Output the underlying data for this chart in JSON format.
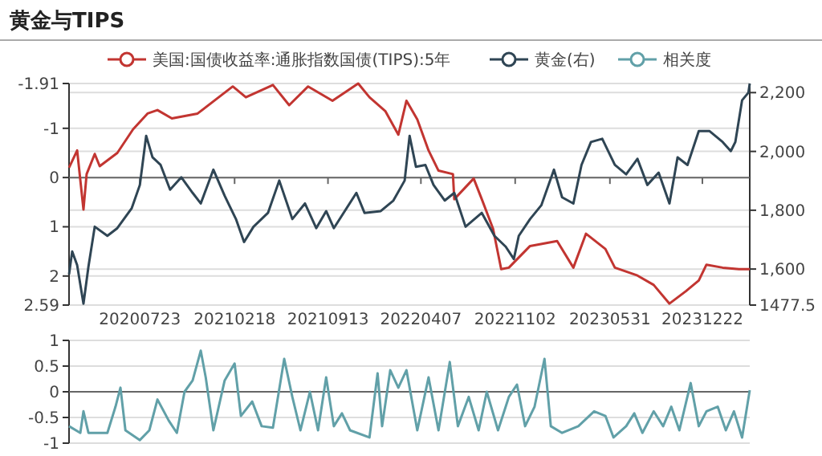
{
  "chart_data": [
    {
      "type": "line",
      "title": "黄金与TIPS",
      "xlim": [
        "2020-02-17",
        "2024-04-05"
      ],
      "xticks": [
        {
          "value": "2020-07-23",
          "label": "20200723"
        },
        {
          "value": "2021-02-18",
          "label": "20210218"
        },
        {
          "value": "2021-09-13",
          "label": "20210913"
        },
        {
          "value": "2022-04-07",
          "label": "20220407"
        },
        {
          "value": "2022-11-02",
          "label": "20221102"
        },
        {
          "value": "2023-05-31",
          "label": "20230531"
        },
        {
          "value": "2023-12-22",
          "label": "20231222"
        }
      ],
      "ylim": [
        2.59,
        -1.91
      ],
      "yticks": [
        -1.91,
        -1,
        0,
        1,
        2,
        2.59
      ],
      "y2lim": [
        1477.5,
        2231
      ],
      "y2ticks": [
        1477.5,
        {
          "value": 1600,
          "label": "1,600"
        },
        {
          "value": 1800,
          "label": "1,800"
        },
        {
          "value": 2000,
          "label": "2,000"
        },
        {
          "value": 2200,
          "label": "2,200"
        }
      ],
      "grid": "y",
      "legend": "top",
      "marker": "none",
      "series": [
        {
          "name": "美国:国债收益率:通胀指数国债(TIPS):5年",
          "color": "#c23531",
          "x": [
            "2020-02-17",
            "2020-03-06",
            "2020-03-20",
            "2020-03-27",
            "2020-04-14",
            "2020-04-25",
            "2020-06-03",
            "2020-07-08",
            "2020-08-09",
            "2020-08-31",
            "2020-10-02",
            "2020-11-28",
            "2021-02-14",
            "2021-03-15",
            "2021-05-14",
            "2021-06-19",
            "2021-07-31",
            "2021-09-23",
            "2021-11-19",
            "2021-12-14",
            "2022-01-18",
            "2022-02-16",
            "2022-03-06",
            "2022-03-30",
            "2022-04-24",
            "2022-05-16",
            "2022-06-17",
            "2022-06-20",
            "2022-08-02",
            "2022-08-20",
            "2022-09-14",
            "2022-10-02",
            "2022-10-19",
            "2022-12-05",
            "2023-02-03",
            "2023-03-11",
            "2023-04-08",
            "2023-05-21",
            "2023-06-11",
            "2023-07-31",
            "2023-09-05",
            "2023-10-10",
            "2023-11-15",
            "2023-12-14",
            "2023-12-31",
            "2024-02-05",
            "2024-03-12",
            "2024-04-05"
          ],
          "values": [
            -0.2,
            -0.55,
            0.65,
            -0.07,
            -0.48,
            -0.23,
            -0.5,
            -0.98,
            -1.3,
            -1.37,
            -1.2,
            -1.3,
            -1.85,
            -1.63,
            -1.88,
            -1.47,
            -1.85,
            -1.56,
            -1.91,
            -1.63,
            -1.35,
            -0.87,
            -1.56,
            -1.18,
            -0.55,
            -0.14,
            -0.07,
            0.44,
            0.02,
            0.44,
            1.04,
            1.86,
            1.83,
            1.39,
            1.29,
            1.83,
            1.14,
            1.45,
            1.83,
            1.99,
            2.18,
            2.56,
            2.31,
            2.09,
            1.77,
            1.83,
            1.86,
            1.86
          ]
        },
        {
          "name": "黄金(右)",
          "color": "#2f4554",
          "axis": "y2",
          "x": [
            "2020-02-17",
            "2020-02-24",
            "2020-03-06",
            "2020-03-20",
            "2020-03-31",
            "2020-04-14",
            "2020-05-12",
            "2020-06-03",
            "2020-07-05",
            "2020-07-23",
            "2020-08-06",
            "2020-08-20",
            "2020-09-07",
            "2020-09-28",
            "2020-10-23",
            "2020-11-17",
            "2020-12-05",
            "2021-01-02",
            "2021-01-27",
            "2021-02-21",
            "2021-03-11",
            "2021-04-01",
            "2021-05-03",
            "2021-05-28",
            "2021-06-26",
            "2021-07-24",
            "2021-08-18",
            "2021-09-09",
            "2021-09-26",
            "2021-11-15",
            "2021-12-03",
            "2022-01-08",
            "2022-02-05",
            "2022-03-02",
            "2022-03-13",
            "2022-03-27",
            "2022-04-17",
            "2022-05-05",
            "2022-05-30",
            "2022-06-20",
            "2022-07-15",
            "2022-08-20",
            "2022-09-17",
            "2022-10-12",
            "2022-10-30",
            "2022-11-10",
            "2022-12-05",
            "2022-12-30",
            "2023-01-27",
            "2023-02-14",
            "2023-03-11",
            "2023-03-29",
            "2023-04-19",
            "2023-05-14",
            "2023-06-11",
            "2023-07-06",
            "2023-07-31",
            "2023-08-22",
            "2023-09-16",
            "2023-10-10",
            "2023-10-28",
            "2023-11-19",
            "2023-12-14",
            "2024-01-07",
            "2024-02-05",
            "2024-02-23",
            "2024-03-04",
            "2024-03-19",
            "2024-04-02",
            "2024-04-05"
          ],
          "values": [
            1582,
            1660,
            1613,
            1482,
            1608,
            1744,
            1713,
            1739,
            1807,
            1886,
            2053,
            1980,
            1954,
            1870,
            1912,
            1859,
            1823,
            1938,
            1849,
            1770,
            1692,
            1744,
            1791,
            1901,
            1770,
            1823,
            1739,
            1797,
            1739,
            1859,
            1791,
            1797,
            1833,
            1901,
            2053,
            1948,
            1954,
            1886,
            1833,
            1859,
            1744,
            1791,
            1713,
            1676,
            1634,
            1713,
            1770,
            1817,
            1938,
            1844,
            1823,
            1954,
            2032,
            2043,
            1954,
            1922,
            1975,
            1886,
            1928,
            1823,
            1980,
            1954,
            2069,
            2069,
            2032,
            2001,
            2032,
            2174,
            2200,
            2231
          ]
        }
      ]
    },
    {
      "type": "line",
      "xlim": [
        "2020-02-17",
        "2024-04-05"
      ],
      "ylim": [
        -1,
        1
      ],
      "yticks": [
        -1,
        -0.5,
        0,
        0.5,
        1
      ],
      "grid": "y",
      "legend": "top",
      "marker": "none",
      "tick_labels": "y",
      "series": [
        {
          "name": "相关度",
          "color": "#61a0a8",
          "x": [
            "2020-02-17",
            "2020-03-13",
            "2020-03-20",
            "2020-03-31",
            "2020-05-12",
            "2020-05-30",
            "2020-06-10",
            "2020-06-21",
            "2020-07-23",
            "2020-08-13",
            "2020-08-31",
            "2020-09-25",
            "2020-10-13",
            "2020-10-30",
            "2020-11-17",
            "2020-12-05",
            "2020-12-16",
            "2021-01-02",
            "2021-01-27",
            "2021-02-18",
            "2021-03-04",
            "2021-03-29",
            "2021-04-19",
            "2021-05-14",
            "2021-06-08",
            "2021-06-26",
            "2021-07-14",
            "2021-08-04",
            "2021-08-22",
            "2021-09-09",
            "2021-09-26",
            "2021-10-14",
            "2021-11-01",
            "2021-12-14",
            "2022-01-01",
            "2022-01-11",
            "2022-01-29",
            "2022-02-16",
            "2022-03-06",
            "2022-03-30",
            "2022-04-24",
            "2022-05-16",
            "2022-06-10",
            "2022-06-28",
            "2022-07-22",
            "2022-08-13",
            "2022-08-31",
            "2022-09-25",
            "2022-10-19",
            "2022-11-06",
            "2022-11-24",
            "2022-12-15",
            "2023-01-06",
            "2023-01-20",
            "2023-02-14",
            "2023-03-22",
            "2023-04-26",
            "2023-05-21",
            "2023-06-08",
            "2023-07-06",
            "2023-07-24",
            "2023-08-11",
            "2023-09-05",
            "2023-09-26",
            "2023-10-14",
            "2023-11-01",
            "2023-11-26",
            "2023-12-14",
            "2023-12-31",
            "2024-01-25",
            "2024-02-12",
            "2024-03-01",
            "2024-03-19",
            "2024-04-05"
          ],
          "values": [
            -0.67,
            -0.8,
            -0.38,
            -0.8,
            -0.8,
            -0.29,
            0.08,
            -0.75,
            -0.94,
            -0.75,
            -0.15,
            -0.56,
            -0.8,
            0,
            0.22,
            0.8,
            0.28,
            -0.75,
            0.22,
            0.55,
            -0.47,
            -0.19,
            -0.67,
            -0.7,
            0.64,
            -0.1,
            -0.75,
            0,
            -0.75,
            0.28,
            -0.67,
            -0.42,
            -0.75,
            -0.89,
            0.36,
            -0.67,
            0.42,
            0.08,
            0.42,
            -0.75,
            0.28,
            -0.75,
            0.58,
            -0.67,
            -0.1,
            -0.75,
            0,
            -0.75,
            -0.1,
            0.14,
            -0.67,
            -0.29,
            0.64,
            -0.67,
            -0.8,
            -0.67,
            -0.38,
            -0.47,
            -0.89,
            -0.67,
            -0.42,
            -0.8,
            -0.38,
            -0.67,
            -0.29,
            -0.75,
            0.17,
            -0.67,
            -0.38,
            -0.29,
            -0.75,
            -0.38,
            -0.89,
            0.03
          ]
        }
      ]
    }
  ]
}
